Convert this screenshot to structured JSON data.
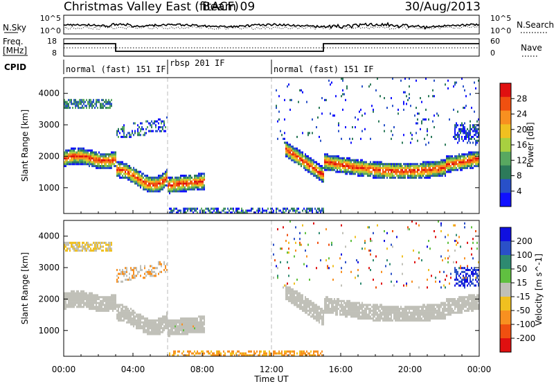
{
  "header": {
    "title": "Christmas Valley East (fitACF)",
    "beam": "Beam 09",
    "date": "30/Aug/2013"
  },
  "nsky_panel": {
    "label": "N.Sky",
    "right_label": "N.Search",
    "left_ticks": [
      "10^5",
      "10^0"
    ],
    "right_ticks": [
      "10^5",
      "10^0"
    ]
  },
  "freq_panel": {
    "label_line1": "Freq.",
    "label_line2": "[MHz]",
    "right_label": "Nave",
    "left_ticks": [
      "18",
      "8"
    ],
    "right_ticks": [
      "60",
      "0"
    ]
  },
  "cpid": {
    "label": "CPID",
    "segments": [
      {
        "label": "normal (fast) 151 IF",
        "start_hour": 0,
        "end_hour": 6
      },
      {
        "label": "rbsp 201 IF",
        "start_hour": 6,
        "end_hour": 12
      },
      {
        "label": "normal (fast) 151 IF",
        "start_hour": 12,
        "end_hour": 24
      }
    ]
  },
  "time_axis": {
    "label": "Time UT",
    "ticks": [
      "00:00",
      "04:00",
      "08:00",
      "12:00",
      "16:00",
      "20:00",
      "00:00"
    ]
  },
  "chart_data": [
    {
      "type": "heatmap",
      "name": "power",
      "ylabel": "Slant Range [km]",
      "yticks": [
        1000,
        2000,
        3000,
        4000
      ],
      "ylim": [
        180,
        4500
      ],
      "xlim_hours": [
        0,
        24
      ],
      "colorbar": {
        "label": "Power [dB]",
        "ticks": [
          "4",
          "8",
          "12",
          "16",
          "20",
          "24",
          "28"
        ],
        "colors": [
          "#1010ff",
          "#2850c8",
          "#2c7a5a",
          "#58a860",
          "#a8d040",
          "#f0c020",
          "#f89020",
          "#f05010",
          "#e01010"
        ]
      }
    },
    {
      "type": "heatmap",
      "name": "velocity",
      "ylabel": "Slant Range [km]",
      "yticks": [
        1000,
        2000,
        3000,
        4000
      ],
      "ylim": [
        180,
        4500
      ],
      "xlim_hours": [
        0,
        24
      ],
      "colorbar": {
        "label": "Velocity [m s^-1]",
        "ticks": [
          "200",
          "100",
          "50",
          "15",
          "-15",
          "-50",
          "-100",
          "-200"
        ],
        "colors": [
          "#1010e0",
          "#2a50c8",
          "#2e8a70",
          "#60c040",
          "#c0c0b8",
          "#f0c020",
          "#f89020",
          "#f05010",
          "#e01010"
        ]
      }
    }
  ]
}
